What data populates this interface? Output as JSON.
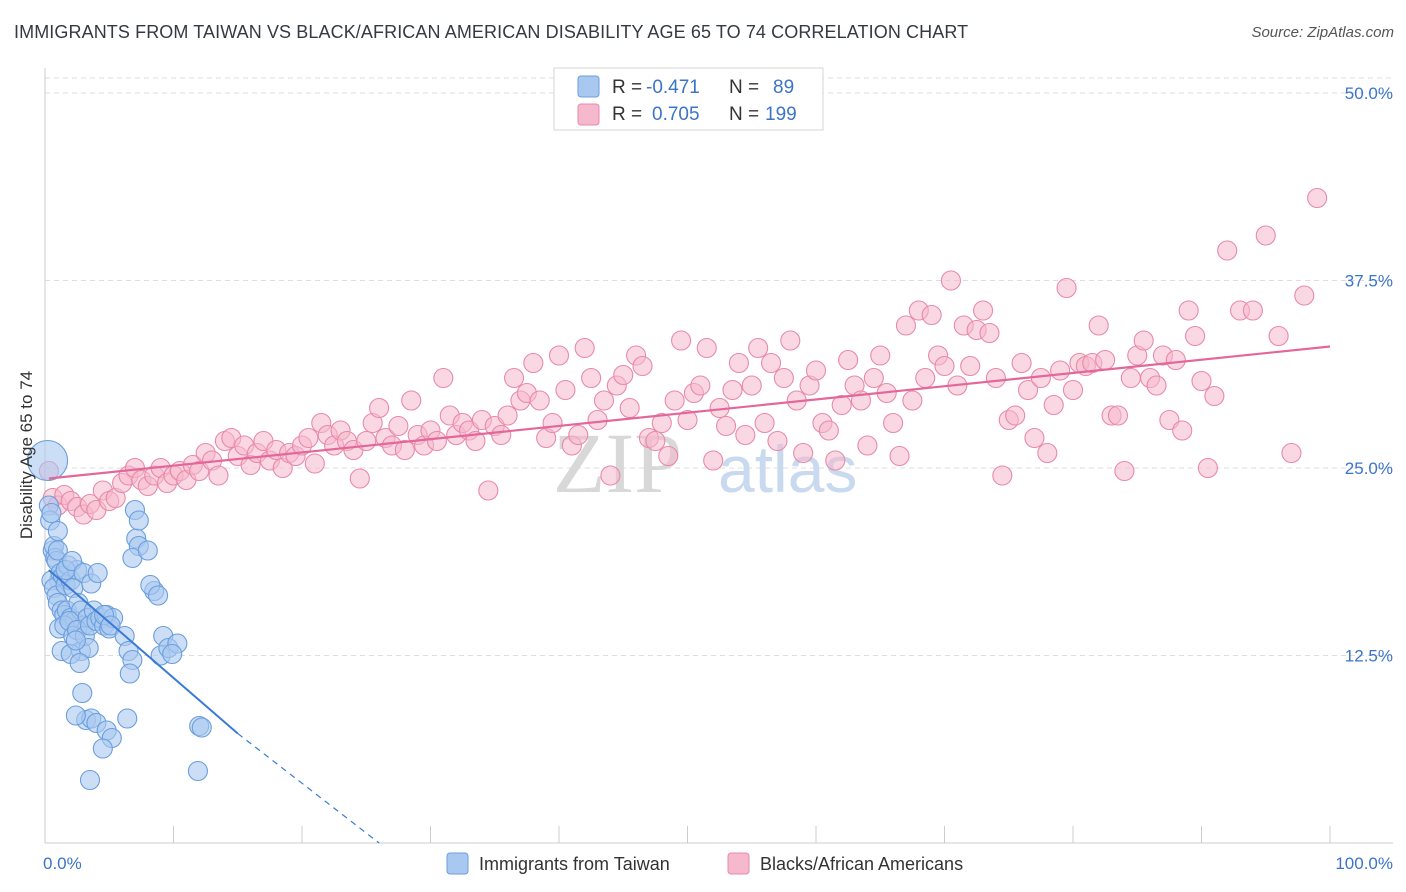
{
  "title": "IMMIGRANTS FROM TAIWAN VS BLACK/AFRICAN AMERICAN DISABILITY AGE 65 TO 74 CORRELATION CHART",
  "source": "Source: ZipAtlas.com",
  "watermark": {
    "zip": "ZIP",
    "atlas": "atlas"
  },
  "colors": {
    "blue_fill": "#a9c8f0",
    "blue_stroke": "#6b9edc",
    "blue_line": "#3a7bd5",
    "pink_fill": "#f5b8cc",
    "pink_stroke": "#e88aa8",
    "pink_line": "#e4679a",
    "grid": "#dddddd",
    "tick": "#3b74c9"
  },
  "legend_top": {
    "r_label": "R =",
    "n_label": "N =",
    "rows": [
      {
        "r": "-0.471",
        "n": "89"
      },
      {
        "r": "0.705",
        "n": "199"
      }
    ]
  },
  "chart_data": {
    "type": "scatter",
    "title": "IMMIGRANTS FROM TAIWAN VS BLACK/AFRICAN AMERICAN DISABILITY AGE 65 TO 74 CORRELATION CHART",
    "xlabel": "",
    "ylabel": "Disability Age 65 to 74",
    "xlim": [
      0,
      100
    ],
    "ylim": [
      0,
      51
    ],
    "x_tick_labels": [
      "0.0%",
      "100.0%"
    ],
    "y_ticks": [
      12.5,
      25.0,
      37.5,
      50.0
    ],
    "y_tick_labels": [
      "12.5%",
      "25.0%",
      "37.5%",
      "50.0%"
    ],
    "grid": true,
    "series": [
      {
        "name": "Immigrants from Taiwan",
        "r": -0.471,
        "n": 89,
        "trend": {
          "x0": 0.3,
          "y0": 18.2,
          "x1": 15,
          "y1": 7.3,
          "dash_to_x": 26,
          "dash_to_y": 0
        },
        "points": [
          [
            0.2,
            25.5
          ],
          [
            0.3,
            22.5
          ],
          [
            0.4,
            21.5
          ],
          [
            0.5,
            22
          ],
          [
            0.6,
            19.5
          ],
          [
            0.7,
            19.8
          ],
          [
            0.8,
            19
          ],
          [
            0.9,
            18.8
          ],
          [
            1,
            19.5
          ],
          [
            1.1,
            17.5
          ],
          [
            0.5,
            17.5
          ],
          [
            0.7,
            17
          ],
          [
            0.9,
            16.5
          ],
          [
            1.2,
            18
          ],
          [
            1.4,
            17.8
          ],
          [
            1.6,
            17.2
          ],
          [
            1.8,
            18.5
          ],
          [
            2,
            17.5
          ],
          [
            2.2,
            17
          ],
          [
            2.5,
            18.2
          ],
          [
            1.0,
            16
          ],
          [
            1.3,
            15.5
          ],
          [
            1.5,
            15.2
          ],
          [
            1.7,
            15.5
          ],
          [
            2,
            15
          ],
          [
            2.3,
            14.8
          ],
          [
            2.6,
            16
          ],
          [
            2.8,
            15.5
          ],
          [
            3,
            14.5
          ],
          [
            3.3,
            15
          ],
          [
            1.1,
            14.3
          ],
          [
            1.5,
            14.5
          ],
          [
            1.9,
            14.8
          ],
          [
            2.2,
            13.8
          ],
          [
            2.5,
            14.2
          ],
          [
            2.8,
            12.8
          ],
          [
            3.1,
            13.8
          ],
          [
            3.4,
            13
          ],
          [
            1.3,
            12.8
          ],
          [
            2,
            12.6
          ],
          [
            2.4,
            13.5
          ],
          [
            2.7,
            12
          ],
          [
            3.5,
            14.5
          ],
          [
            3.8,
            15.5
          ],
          [
            4,
            14.8
          ],
          [
            4.3,
            15
          ],
          [
            4.6,
            14.5
          ],
          [
            4.8,
            15.2
          ],
          [
            5,
            14.3
          ],
          [
            5.3,
            15
          ],
          [
            1.6,
            18.2
          ],
          [
            2.1,
            18.8
          ],
          [
            3,
            18
          ],
          [
            3.6,
            17.3
          ],
          [
            4.1,
            18
          ],
          [
            4.6,
            15.2
          ],
          [
            5.1,
            14.5
          ],
          [
            6.2,
            13.8
          ],
          [
            6.5,
            12.8
          ],
          [
            6.8,
            12.2
          ],
          [
            6.6,
            11.3
          ],
          [
            7.1,
            20.3
          ],
          [
            7.3,
            19.8
          ],
          [
            6.8,
            19
          ],
          [
            7.0,
            22.2
          ],
          [
            7.3,
            21.5
          ],
          [
            8.0,
            19.5
          ],
          [
            8.5,
            16.8
          ],
          [
            8.2,
            17.2
          ],
          [
            8.8,
            16.5
          ],
          [
            9.2,
            13.8
          ],
          [
            9.0,
            12.5
          ],
          [
            9.6,
            13
          ],
          [
            10.3,
            13.3
          ],
          [
            9.9,
            12.6
          ],
          [
            2.9,
            10
          ],
          [
            3.2,
            8.2
          ],
          [
            3.6,
            8.3
          ],
          [
            4.0,
            8.0
          ],
          [
            2.4,
            8.5
          ],
          [
            4.8,
            7.5
          ],
          [
            6.4,
            8.3
          ],
          [
            5.2,
            7.0
          ],
          [
            4.5,
            6.3
          ],
          [
            12.0,
            7.8
          ],
          [
            12.2,
            7.7
          ],
          [
            11.9,
            4.8
          ],
          [
            3.5,
            4.2
          ],
          [
            1.0,
            20.8
          ]
        ],
        "sizes": [
          20,
          10
        ]
      },
      {
        "name": "Blacks/African Americans",
        "r": 0.705,
        "n": 199,
        "trend": {
          "x0": 0.3,
          "y0": 24.3,
          "x1": 100,
          "y1": 33.1
        },
        "points": [
          [
            0.3,
            24.8
          ],
          [
            0.6,
            23
          ],
          [
            1,
            22.5
          ],
          [
            1.5,
            23.2
          ],
          [
            2,
            22.8
          ],
          [
            2.5,
            22.4
          ],
          [
            3,
            21.9
          ],
          [
            3.5,
            22.6
          ],
          [
            4,
            22.2
          ],
          [
            4.5,
            23.5
          ],
          [
            5,
            22.8
          ],
          [
            5.5,
            23
          ],
          [
            6,
            24
          ],
          [
            6.5,
            24.5
          ],
          [
            7,
            25
          ],
          [
            7.5,
            24.2
          ],
          [
            8,
            23.8
          ],
          [
            8.5,
            24.5
          ],
          [
            9,
            25
          ],
          [
            9.5,
            24
          ],
          [
            10,
            24.5
          ],
          [
            10.5,
            24.8
          ],
          [
            11,
            24.2
          ],
          [
            11.5,
            25.2
          ],
          [
            12,
            24.8
          ],
          [
            12.5,
            26
          ],
          [
            13,
            25.5
          ],
          [
            13.5,
            24.5
          ],
          [
            14,
            26.8
          ],
          [
            14.5,
            27
          ],
          [
            15,
            25.8
          ],
          [
            15.5,
            26.5
          ],
          [
            16,
            25.2
          ],
          [
            16.5,
            26
          ],
          [
            17,
            26.8
          ],
          [
            17.5,
            25.5
          ],
          [
            18,
            26.2
          ],
          [
            18.5,
            25
          ],
          [
            19,
            26
          ],
          [
            19.5,
            25.8
          ],
          [
            20,
            26.5
          ],
          [
            20.5,
            27
          ],
          [
            21,
            25.3
          ],
          [
            21.5,
            28
          ],
          [
            22,
            27.2
          ],
          [
            22.5,
            26.5
          ],
          [
            23,
            27.5
          ],
          [
            23.5,
            26.8
          ],
          [
            24,
            26.2
          ],
          [
            24.5,
            24.3
          ],
          [
            25,
            26.8
          ],
          [
            25.5,
            28
          ],
          [
            26,
            29
          ],
          [
            26.5,
            27
          ],
          [
            27,
            26.5
          ],
          [
            27.5,
            27.8
          ],
          [
            28,
            26.2
          ],
          [
            28.5,
            29.5
          ],
          [
            29,
            27.2
          ],
          [
            29.5,
            26.5
          ],
          [
            30,
            27.5
          ],
          [
            30.5,
            26.8
          ],
          [
            31,
            31
          ],
          [
            31.5,
            28.5
          ],
          [
            32,
            27.2
          ],
          [
            32.5,
            28
          ],
          [
            33,
            27.5
          ],
          [
            33.5,
            26.8
          ],
          [
            34,
            28.2
          ],
          [
            34.5,
            23.5
          ],
          [
            35,
            27.8
          ],
          [
            35.5,
            27.2
          ],
          [
            36,
            28.5
          ],
          [
            36.5,
            31
          ],
          [
            37,
            29.5
          ],
          [
            37.5,
            30
          ],
          [
            38,
            32
          ],
          [
            38.5,
            29.5
          ],
          [
            39,
            27
          ],
          [
            39.5,
            28
          ],
          [
            40,
            32.5
          ],
          [
            40.5,
            30.2
          ],
          [
            41,
            26.5
          ],
          [
            41.5,
            27.2
          ],
          [
            42,
            33
          ],
          [
            42.5,
            31
          ],
          [
            43,
            28.2
          ],
          [
            43.5,
            29.5
          ],
          [
            44,
            24.5
          ],
          [
            44.5,
            30.5
          ],
          [
            45,
            31.2
          ],
          [
            45.5,
            29
          ],
          [
            46,
            32.5
          ],
          [
            46.5,
            31.8
          ],
          [
            47,
            27
          ],
          [
            47.5,
            26.8
          ],
          [
            48,
            28
          ],
          [
            48.5,
            25.8
          ],
          [
            49,
            29.5
          ],
          [
            49.5,
            33.5
          ],
          [
            50,
            28.2
          ],
          [
            50.5,
            30
          ],
          [
            51,
            30.5
          ],
          [
            51.5,
            33
          ],
          [
            52,
            25.5
          ],
          [
            52.5,
            29
          ],
          [
            53,
            27.8
          ],
          [
            53.5,
            30.2
          ],
          [
            54,
            32
          ],
          [
            54.5,
            27.2
          ],
          [
            55,
            30.5
          ],
          [
            55.5,
            33
          ],
          [
            56,
            28
          ],
          [
            56.5,
            32
          ],
          [
            57,
            26.8
          ],
          [
            57.5,
            31
          ],
          [
            58,
            33.5
          ],
          [
            58.5,
            29.5
          ],
          [
            59,
            26
          ],
          [
            59.5,
            30.5
          ],
          [
            60,
            31.5
          ],
          [
            60.5,
            28
          ],
          [
            61,
            27.5
          ],
          [
            61.5,
            25.5
          ],
          [
            62,
            29.2
          ],
          [
            62.5,
            32.2
          ],
          [
            63,
            30.5
          ],
          [
            63.5,
            29.5
          ],
          [
            64,
            26.5
          ],
          [
            64.5,
            31
          ],
          [
            65,
            32.5
          ],
          [
            65.5,
            30
          ],
          [
            66,
            28
          ],
          [
            66.5,
            25.8
          ],
          [
            67,
            34.5
          ],
          [
            67.5,
            29.5
          ],
          [
            68,
            35.5
          ],
          [
            68.5,
            31
          ],
          [
            69,
            35.2
          ],
          [
            69.5,
            32.5
          ],
          [
            70,
            31.8
          ],
          [
            70.5,
            37.5
          ],
          [
            71,
            30.5
          ],
          [
            71.5,
            34.5
          ],
          [
            72,
            31.8
          ],
          [
            72.5,
            34.2
          ],
          [
            73,
            35.5
          ],
          [
            73.5,
            34
          ],
          [
            74,
            31
          ],
          [
            74.5,
            24.5
          ],
          [
            75,
            28.2
          ],
          [
            75.5,
            28.5
          ],
          [
            76,
            32
          ],
          [
            76.5,
            30.2
          ],
          [
            77,
            27
          ],
          [
            77.5,
            31
          ],
          [
            78,
            26
          ],
          [
            78.5,
            29.2
          ],
          [
            79,
            31.5
          ],
          [
            79.5,
            37
          ],
          [
            80,
            30.2
          ],
          [
            80.5,
            32
          ],
          [
            81,
            31.8
          ],
          [
            81.5,
            32
          ],
          [
            82,
            34.5
          ],
          [
            82.5,
            32.2
          ],
          [
            83,
            28.5
          ],
          [
            83.5,
            28.5
          ],
          [
            84,
            24.8
          ],
          [
            84.5,
            31
          ],
          [
            85,
            32.5
          ],
          [
            85.5,
            33.5
          ],
          [
            86,
            31
          ],
          [
            86.5,
            30.5
          ],
          [
            87,
            32.5
          ],
          [
            87.5,
            28.2
          ],
          [
            88,
            32.2
          ],
          [
            88.5,
            27.5
          ],
          [
            89,
            35.5
          ],
          [
            89.5,
            33.8
          ],
          [
            90,
            30.8
          ],
          [
            90.5,
            25
          ],
          [
            91,
            29.8
          ],
          [
            92,
            39.5
          ],
          [
            93,
            35.5
          ],
          [
            94,
            35.5
          ],
          [
            95,
            40.5
          ],
          [
            96,
            33.8
          ],
          [
            97,
            26
          ],
          [
            98,
            36.5
          ],
          [
            99,
            43
          ]
        ],
        "sizes": [
          10
        ]
      }
    ]
  },
  "legend_bottom": [
    "Immigrants from Taiwan",
    "Blacks/African Americans"
  ]
}
